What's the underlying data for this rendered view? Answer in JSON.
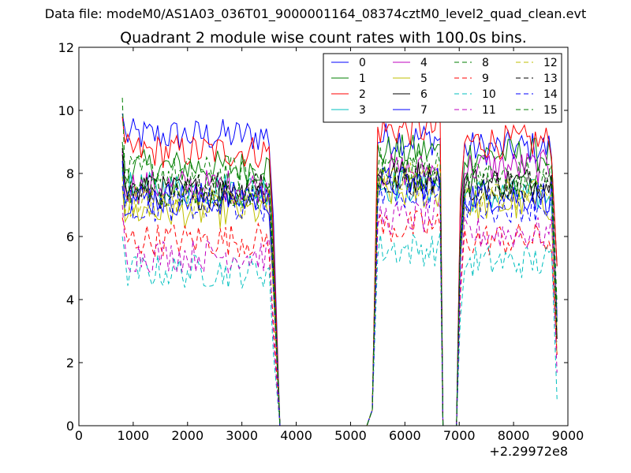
{
  "figure_note": "Data file: modeM0/AS1A03_036T01_9000001164_08374cztM0_level2_quad_clean.evt",
  "chart_data": {
    "type": "line",
    "title": "Quadrant 2 module wise count rates with 100.0s bins.",
    "xlabel": "",
    "ylabel": "",
    "x_offset_label": "+2.29972e8",
    "xlim": [
      0,
      9000
    ],
    "ylim": [
      0,
      12
    ],
    "x_ticks": [
      0,
      1000,
      2000,
      3000,
      4000,
      5000,
      6000,
      7000,
      8000,
      9000
    ],
    "y_ticks": [
      0,
      2,
      4,
      6,
      8,
      10,
      12
    ],
    "grid": false,
    "legend_position": "top-right",
    "legend_columns": 4,
    "segments": [
      {
        "x_start": 800,
        "x_end": 3500,
        "drop_end": 3700
      },
      {
        "x_start": 5500,
        "x_end": 6650,
        "rise_start": 5300,
        "drop_end": 6700
      },
      {
        "x_start": 7100,
        "x_end": 8700,
        "rise_start": 6950,
        "drop_end": 8800
      }
    ],
    "series": [
      {
        "name": "0",
        "color": "#0000ff",
        "dash": "solid",
        "levels": [
          9.2,
          9.1,
          8.8
        ],
        "start": 9.9
      },
      {
        "name": "1",
        "color": "#007f00",
        "dash": "solid",
        "levels": [
          8.2,
          8.7,
          8.6
        ],
        "start": 9.0
      },
      {
        "name": "2",
        "color": "#ff0000",
        "dash": "solid",
        "levels": [
          8.7,
          9.4,
          9.0
        ],
        "start": 9.8
      },
      {
        "name": "3",
        "color": "#00bfbf",
        "dash": "solid",
        "levels": [
          7.5,
          7.6,
          7.3
        ],
        "start": 8.1
      },
      {
        "name": "4",
        "color": "#bf00bf",
        "dash": "solid",
        "levels": [
          7.6,
          8.1,
          8.2
        ],
        "start": 8.7
      },
      {
        "name": "5",
        "color": "#bfbf00",
        "dash": "solid",
        "levels": [
          6.8,
          7.4,
          7.0
        ],
        "start": 7.6
      },
      {
        "name": "6",
        "color": "#000000",
        "dash": "solid",
        "levels": [
          7.4,
          7.9,
          7.7
        ],
        "start": 8.6
      },
      {
        "name": "7",
        "color": "#0000ff",
        "dash": "solid",
        "levels": [
          7.2,
          7.7,
          7.3
        ],
        "start": 8.4
      },
      {
        "name": "8",
        "color": "#007f00",
        "dash": "dashed",
        "levels": [
          8.0,
          8.3,
          7.9
        ],
        "start": 10.4
      },
      {
        "name": "9",
        "color": "#ff0000",
        "dash": "dashed",
        "levels": [
          5.9,
          6.3,
          5.9
        ],
        "start": 6.6
      },
      {
        "name": "10",
        "color": "#00bfbf",
        "dash": "dashed",
        "levels": [
          4.9,
          5.6,
          5.2
        ],
        "start": 6.0
      },
      {
        "name": "11",
        "color": "#bf00bf",
        "dash": "dashed",
        "levels": [
          5.4,
          6.6,
          6.1
        ],
        "start": 7.0
      },
      {
        "name": "12",
        "color": "#bfbf00",
        "dash": "dashed",
        "levels": [
          7.1,
          7.8,
          7.3
        ],
        "start": 7.9
      },
      {
        "name": "13",
        "color": "#000000",
        "dash": "dashed",
        "levels": [
          7.5,
          7.8,
          7.6
        ],
        "start": 8.8
      },
      {
        "name": "14",
        "color": "#0000ff",
        "dash": "dashed",
        "levels": [
          7.0,
          7.4,
          7.0
        ],
        "start": 7.6
      },
      {
        "name": "15",
        "color": "#007f00",
        "dash": "dashed",
        "levels": [
          7.4,
          8.0,
          7.8
        ],
        "start": 8.2
      }
    ]
  }
}
